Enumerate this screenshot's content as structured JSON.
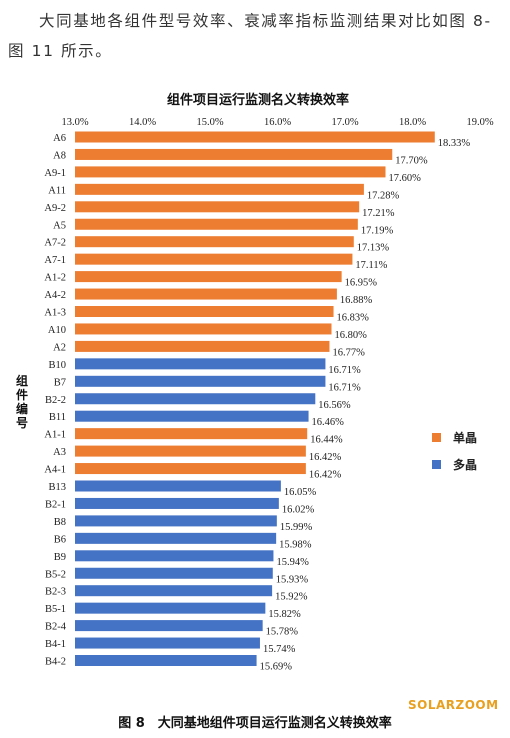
{
  "intro_text": "大同基地各组件型号效率、衰减率指标监测结果对比如图 8-图 11 所示。",
  "watermark": "SOLARZOOM",
  "caption": "图 8　大同基地组件项目运行监测名义转换效率",
  "colors": {
    "mono": "#ED7D31",
    "poly": "#4472C4"
  },
  "chart_data": {
    "type": "bar",
    "orientation": "horizontal",
    "title": "组件项目运行监测名义转换效率",
    "ylabel": "组件编号",
    "xlim": [
      13.0,
      19.0
    ],
    "x_ticks": [
      "13.0%",
      "14.0%",
      "15.0%",
      "16.0%",
      "17.0%",
      "18.0%",
      "19.0%"
    ],
    "x_tick_values": [
      13,
      14,
      15,
      16,
      17,
      18,
      19
    ],
    "legend": {
      "placement": "right",
      "entries": [
        {
          "name": "单晶",
          "key": "mono"
        },
        {
          "name": "多晶",
          "key": "poly"
        }
      ]
    },
    "bars": [
      {
        "category": "A6",
        "value": 18.33,
        "label": "18.33%",
        "type": "mono"
      },
      {
        "category": "A8",
        "value": 17.7,
        "label": "17.70%",
        "type": "mono"
      },
      {
        "category": "A9-1",
        "value": 17.6,
        "label": "17.60%",
        "type": "mono"
      },
      {
        "category": "A11",
        "value": 17.28,
        "label": "17.28%",
        "type": "mono"
      },
      {
        "category": "A9-2",
        "value": 17.21,
        "label": "17.21%",
        "type": "mono"
      },
      {
        "category": "A5",
        "value": 17.19,
        "label": "17.19%",
        "type": "mono"
      },
      {
        "category": "A7-2",
        "value": 17.13,
        "label": "17.13%",
        "type": "mono"
      },
      {
        "category": "A7-1",
        "value": 17.11,
        "label": "17.11%",
        "type": "mono"
      },
      {
        "category": "A1-2",
        "value": 16.95,
        "label": "16.95%",
        "type": "mono"
      },
      {
        "category": "A4-2",
        "value": 16.88,
        "label": "16.88%",
        "type": "mono"
      },
      {
        "category": "A1-3",
        "value": 16.83,
        "label": "16.83%",
        "type": "mono"
      },
      {
        "category": "A10",
        "value": 16.8,
        "label": "16.80%",
        "type": "mono"
      },
      {
        "category": "A2",
        "value": 16.77,
        "label": "16.77%",
        "type": "mono"
      },
      {
        "category": "B10",
        "value": 16.71,
        "label": "16.71%",
        "type": "poly"
      },
      {
        "category": "B7",
        "value": 16.71,
        "label": "16.71%",
        "type": "poly"
      },
      {
        "category": "B2-2",
        "value": 16.56,
        "label": "16.56%",
        "type": "poly"
      },
      {
        "category": "B11",
        "value": 16.46,
        "label": "16.46%",
        "type": "poly"
      },
      {
        "category": "A1-1",
        "value": 16.44,
        "label": "16.44%",
        "type": "mono"
      },
      {
        "category": "A3",
        "value": 16.42,
        "label": "16.42%",
        "type": "mono"
      },
      {
        "category": "A4-1",
        "value": 16.42,
        "label": "16.42%",
        "type": "mono"
      },
      {
        "category": "B13",
        "value": 16.05,
        "label": "16.05%",
        "type": "poly"
      },
      {
        "category": "B2-1",
        "value": 16.02,
        "label": "16.02%",
        "type": "poly"
      },
      {
        "category": "B8",
        "value": 15.99,
        "label": "15.99%",
        "type": "poly"
      },
      {
        "category": "B6",
        "value": 15.98,
        "label": "15.98%",
        "type": "poly"
      },
      {
        "category": "B9",
        "value": 15.94,
        "label": "15.94%",
        "type": "poly"
      },
      {
        "category": "B5-2",
        "value": 15.93,
        "label": "15.93%",
        "type": "poly"
      },
      {
        "category": "B2-3",
        "value": 15.92,
        "label": "15.92%",
        "type": "poly"
      },
      {
        "category": "B5-1",
        "value": 15.82,
        "label": "15.82%",
        "type": "poly"
      },
      {
        "category": "B2-4",
        "value": 15.78,
        "label": "15.78%",
        "type": "poly"
      },
      {
        "category": "B4-1",
        "value": 15.74,
        "label": "15.74%",
        "type": "poly"
      },
      {
        "category": "B4-2",
        "value": 15.69,
        "label": "15.69%",
        "type": "poly"
      }
    ]
  }
}
